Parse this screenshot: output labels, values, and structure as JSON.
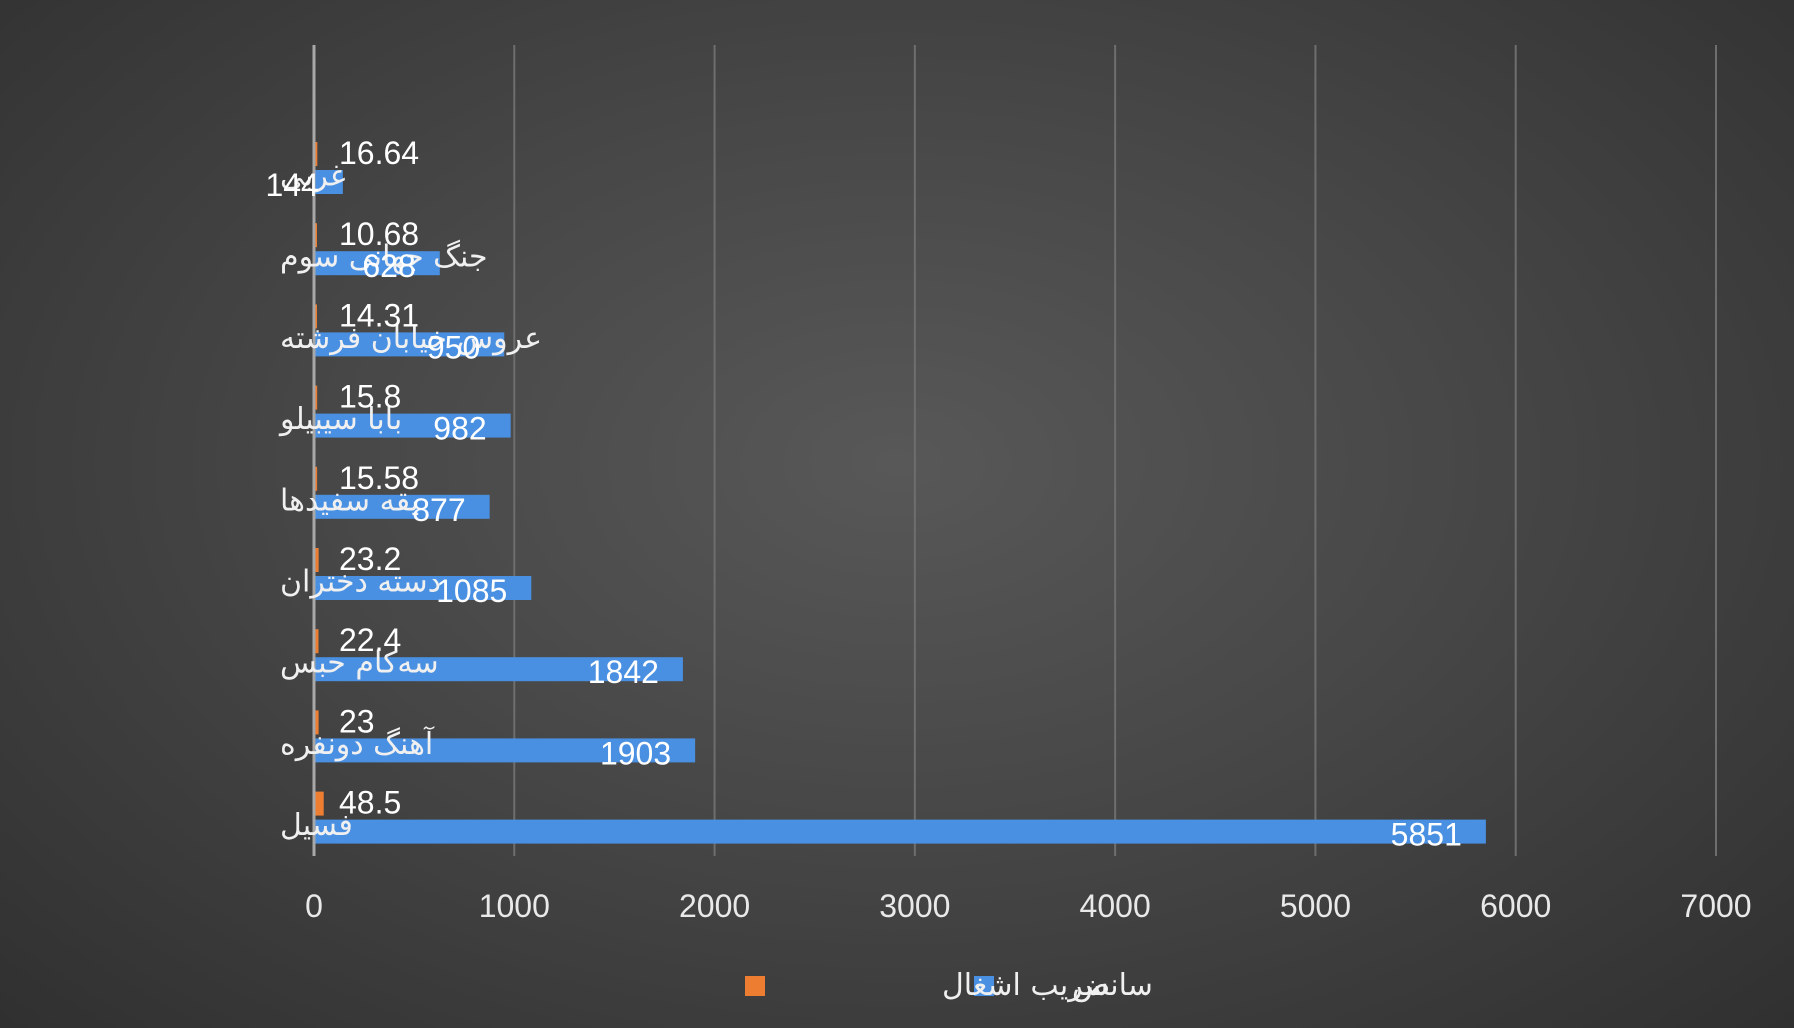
{
  "chart_data": {
    "type": "bar",
    "orientation": "horizontal",
    "categories": [
      "غربی",
      "جنگ جهانی سوم",
      "عروس خیابان فرشته",
      "بابا سیبیلو",
      "یقه سفیدها",
      "دسته دختران",
      "سه‌کام حبس",
      "آهنگ دونفره",
      "فسیل"
    ],
    "series": [
      {
        "name": "ضریب اشغال",
        "color": "#ED7D31",
        "values": [
          16.64,
          10.68,
          14.31,
          15.8,
          15.58,
          23.2,
          22.4,
          23,
          48.5
        ],
        "labels": [
          "16.64",
          "10.68",
          "14.31",
          "15.8",
          "15.58",
          "23.2",
          "22.4",
          "23",
          "48.5"
        ]
      },
      {
        "name": "سانس",
        "color": "#4A90E2",
        "values": [
          144,
          628,
          950,
          982,
          877,
          1085,
          1842,
          1903,
          5851
        ],
        "labels": [
          "144",
          "628",
          "950",
          "982",
          "877",
          "1085",
          "1842",
          "1903",
          "5851"
        ]
      }
    ],
    "xlim": [
      0,
      7000
    ],
    "xticks": [
      "0",
      "1000",
      "2000",
      "3000",
      "4000",
      "5000",
      "6000",
      "7000"
    ],
    "grid": true,
    "legend": "bottom",
    "title": "",
    "xlabel": "",
    "ylabel": ""
  }
}
